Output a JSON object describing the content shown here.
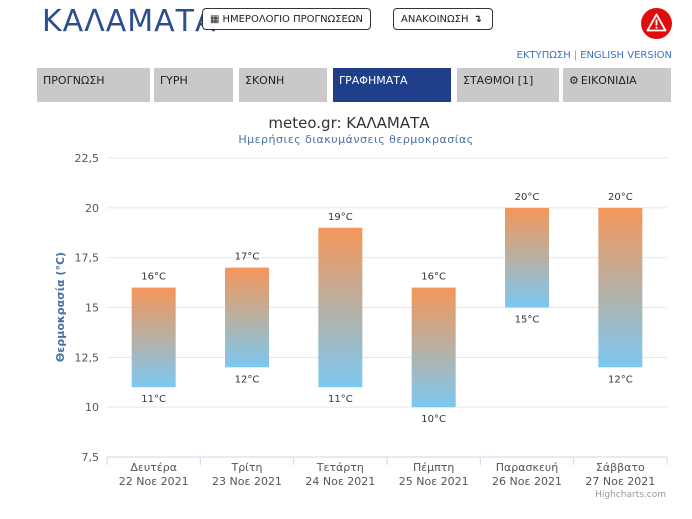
{
  "header": {
    "city": "ΚΑΛΑΜΑΤΑ",
    "calendar_button": "ΗΜΕΡΟΛΟΓΙΟ ΠΡΟΓΝΩΣΕΩΝ",
    "announcement_button": "ΑΝΑΚΟΙΝΩΣΗ",
    "alert_icon": "warning-triangle-icon",
    "print_link": "ΕΚΤΥΠΩΣΗ",
    "link_separator": "|",
    "english_link": "ENGLISH VERSION"
  },
  "tabs": [
    {
      "label": "ΠΡΟΓΝΩΣΗ"
    },
    {
      "label": "ΓΥΡΗ"
    },
    {
      "label": "ΣΚΟΝΗ"
    },
    {
      "label": "ΓΡΑΦΗΜΑΤΑ"
    },
    {
      "label": "ΣΤΑΘΜΟΙ [1]"
    },
    {
      "label": "ΕΙΚΟΝΙΔΙΑ"
    }
  ],
  "colors": {
    "title_blue": "#2d4f8f",
    "active_tab": "#1f3f8b",
    "tab_bg": "#c9c9c9",
    "bar_top": "#f4965a",
    "bar_mid": "#b8b0a3",
    "bar_bottom": "#7cc8f2",
    "alert_red": "#e00d0d",
    "link_blue": "#3a73c4"
  },
  "chart_data": {
    "type": "columnrange",
    "title": "meteo.gr: ΚΑΛΑΜΑΤΑ",
    "subtitle": "Ημερήσιες διακυμάνσεις θερμοκρασίας",
    "ylabel": "Θερμοκρασία (°C)",
    "ylim": [
      7.5,
      22.5
    ],
    "yticks": [
      "7,5",
      "10",
      "12,5",
      "15",
      "17,5",
      "20",
      "22,5"
    ],
    "ytick_values": [
      7.5,
      10,
      12.5,
      15,
      17.5,
      20,
      22.5
    ],
    "categories": [
      {
        "day": "Δευτέρα",
        "date": "22 Νοε 2021"
      },
      {
        "day": "Τρίτη",
        "date": "23 Νοε 2021"
      },
      {
        "day": "Τετάρτη",
        "date": "24 Νοε 2021"
      },
      {
        "day": "Πέμπτη",
        "date": "25 Νοε 2021"
      },
      {
        "day": "Παρασκευή",
        "date": "26 Νοε 2021"
      },
      {
        "day": "Σάββατο",
        "date": "27 Νοε 2021"
      }
    ],
    "low": [
      11,
      12,
      11,
      10,
      15,
      12
    ],
    "high": [
      16,
      17,
      19,
      16,
      20,
      20
    ],
    "low_labels": [
      "11°C",
      "12°C",
      "11°C",
      "10°C",
      "15°C",
      "12°C"
    ],
    "high_labels": [
      "16°C",
      "17°C",
      "19°C",
      "16°C",
      "20°C",
      "20°C"
    ],
    "grid": true,
    "credits": "Highcharts.com"
  }
}
